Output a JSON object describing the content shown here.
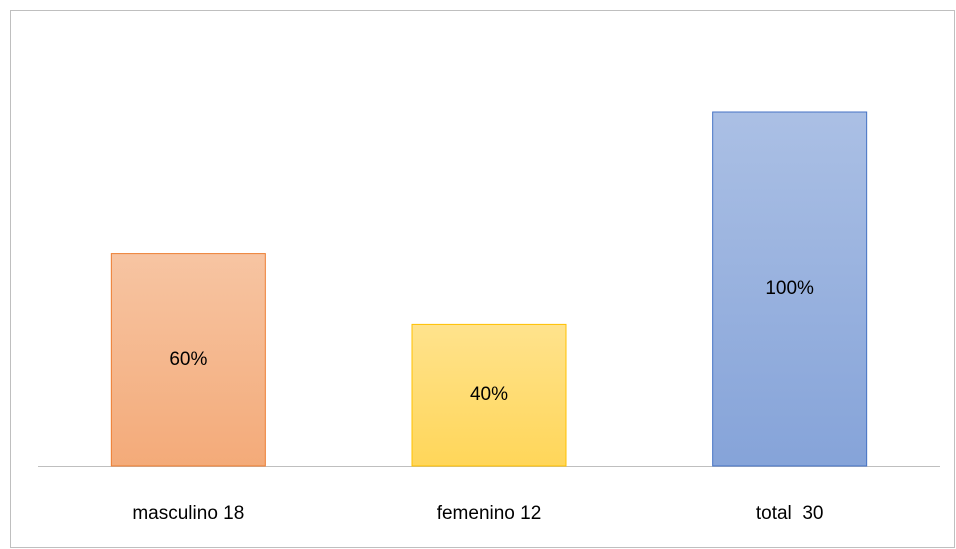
{
  "chart_data": {
    "type": "bar",
    "categories": [
      "masculino 18",
      "femenino 12",
      "total  30"
    ],
    "values": [
      60,
      40,
      100
    ],
    "value_labels": [
      "60%",
      "40%",
      "100%"
    ],
    "colors": [
      "#ed7d31",
      "#ffc000",
      "#4472c4"
    ],
    "ylim": [
      0,
      120
    ]
  }
}
